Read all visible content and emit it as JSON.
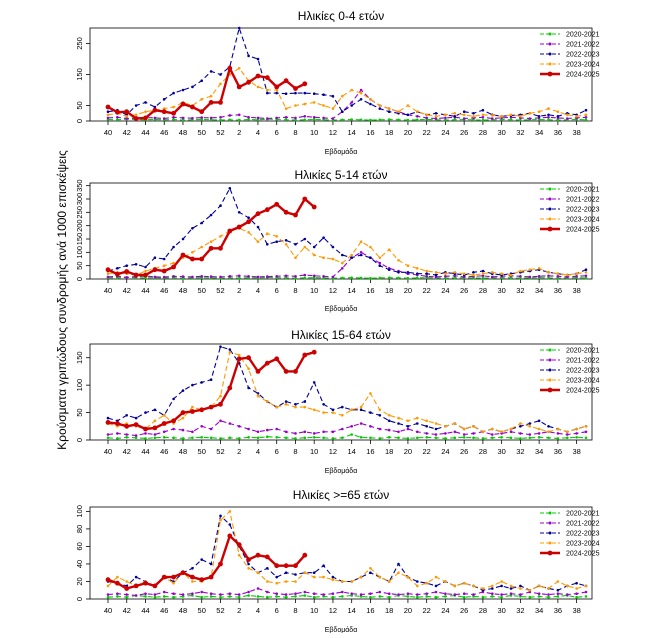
{
  "figure": {
    "ylabel": "Κρούσματα γριπώδους συνδρομής ανά 1000 επισκέψεις"
  },
  "legend_entries": [
    {
      "name": "2020-2021",
      "color": "#00cc00",
      "style": "dashed",
      "marker": "dot"
    },
    {
      "name": "2021-2022",
      "color": "#9900cc",
      "style": "dashed",
      "marker": "dot"
    },
    {
      "name": "2022-2023",
      "color": "#000099",
      "style": "dashed",
      "marker": "dot"
    },
    {
      "name": "2023-2024",
      "color": "#ff9900",
      "style": "dashed",
      "marker": "dot"
    },
    {
      "name": "2024-2025",
      "color": "#cc0000",
      "style": "solid",
      "marker": "dot"
    }
  ],
  "week_ticks": [
    "40",
    "42",
    "44",
    "46",
    "48",
    "50",
    "52",
    "2",
    "4",
    "6",
    "8",
    "10",
    "12",
    "14",
    "16",
    "18",
    "20",
    "22",
    "24",
    "26",
    "28",
    "30",
    "32",
    "34",
    "36",
    "38"
  ],
  "chart_data": [
    {
      "type": "line",
      "title": "Ηλικίες 0-4 ετών",
      "xlabel": "Εβδομάδα",
      "ylabel": "Κρούσματα γριπώδους συνδρομής ανά 1000 επισκέψεις",
      "ylim": [
        0,
        300
      ],
      "yticks": [
        0,
        50,
        150,
        250
      ],
      "series": [
        {
          "name": "2020-2021",
          "values": [
            5,
            4,
            6,
            5,
            4,
            5,
            4,
            5,
            3,
            4,
            5,
            4,
            3,
            4,
            3,
            5,
            4,
            6,
            5,
            4,
            3,
            4,
            5,
            4,
            3,
            4,
            5,
            4,
            3,
            4,
            5,
            4,
            3,
            4,
            5,
            4,
            3,
            4,
            5,
            4,
            3,
            4,
            5,
            4,
            3,
            4,
            5,
            4,
            3,
            4,
            5,
            4
          ]
        },
        {
          "name": "2021-2022",
          "values": [
            10,
            12,
            8,
            9,
            11,
            10,
            8,
            12,
            10,
            9,
            11,
            10,
            12,
            18,
            20,
            12,
            10,
            8,
            10,
            12,
            10,
            15,
            12,
            10,
            8,
            30,
            60,
            100,
            70,
            50,
            40,
            30,
            20,
            15,
            10,
            8,
            10,
            12,
            8,
            10,
            12,
            8,
            10,
            12,
            10,
            8,
            10,
            12,
            10,
            8,
            10,
            12
          ]
        },
        {
          "name": "2022-2023",
          "values": [
            30,
            35,
            20,
            50,
            60,
            45,
            70,
            90,
            100,
            110,
            130,
            160,
            150,
            175,
            300,
            210,
            200,
            90,
            90,
            88,
            90,
            90,
            88,
            85,
            80,
            30,
            50,
            70,
            55,
            40,
            30,
            25,
            20,
            30,
            20,
            25,
            20,
            15,
            30,
            25,
            35,
            20,
            15,
            18,
            20,
            25,
            15,
            20,
            15,
            25,
            20,
            35
          ]
        },
        {
          "name": "2023-2024",
          "values": [
            20,
            25,
            15,
            20,
            30,
            35,
            40,
            45,
            60,
            50,
            70,
            80,
            120,
            150,
            170,
            130,
            110,
            100,
            100,
            40,
            50,
            55,
            60,
            50,
            40,
            80,
            100,
            90,
            70,
            50,
            40,
            30,
            50,
            30,
            20,
            15,
            20,
            25,
            20,
            15,
            20,
            18,
            15,
            20,
            15,
            25,
            30,
            40,
            30,
            20,
            15,
            20
          ]
        },
        {
          "name": "2024-2025",
          "values": [
            45,
            28,
            30,
            8,
            10,
            35,
            30,
            25,
            55,
            45,
            30,
            60,
            60,
            170,
            110,
            125,
            145,
            140,
            110,
            130,
            105,
            120
          ]
        }
      ]
    },
    {
      "type": "line",
      "title": "Ηλικίες 5-14 ετών",
      "xlabel": "Εβδομάδα",
      "ylabel": "Κρούσματα γριπώδους συνδρομής ανά 1000 επισκέψεις",
      "ylim": [
        0,
        360
      ],
      "yticks": [
        0,
        50,
        100,
        150,
        200,
        250,
        300,
        350
      ],
      "series": [
        {
          "name": "2020-2021",
          "values": [
            5,
            4,
            6,
            5,
            4,
            5,
            4,
            5,
            3,
            4,
            5,
            4,
            3,
            4,
            3,
            5,
            4,
            6,
            5,
            4,
            3,
            4,
            5,
            4,
            3,
            4,
            5,
            4,
            3,
            4,
            5,
            4,
            3,
            4,
            5,
            4,
            3,
            4,
            5,
            4,
            3,
            4,
            5,
            4,
            3,
            4,
            5,
            4,
            3,
            4,
            5,
            4
          ]
        },
        {
          "name": "2021-2022",
          "values": [
            8,
            10,
            6,
            9,
            11,
            8,
            7,
            10,
            9,
            8,
            10,
            9,
            8,
            10,
            12,
            10,
            8,
            9,
            10,
            12,
            10,
            15,
            12,
            10,
            8,
            40,
            80,
            100,
            80,
            60,
            40,
            30,
            20,
            15,
            10,
            8,
            10,
            12,
            8,
            10,
            12,
            8,
            10,
            12,
            10,
            8,
            10,
            12,
            10,
            8,
            10,
            12
          ]
        },
        {
          "name": "2022-2023",
          "values": [
            30,
            40,
            50,
            55,
            45,
            80,
            75,
            120,
            150,
            190,
            210,
            240,
            275,
            340,
            250,
            230,
            195,
            130,
            140,
            145,
            130,
            150,
            120,
            155,
            120,
            90,
            80,
            90,
            80,
            50,
            35,
            25,
            25,
            20,
            20,
            15,
            25,
            20,
            15,
            25,
            30,
            20,
            15,
            20,
            25,
            30,
            35,
            25,
            20,
            15,
            20,
            35
          ]
        },
        {
          "name": "2023-2024",
          "values": [
            20,
            25,
            20,
            15,
            30,
            40,
            50,
            60,
            80,
            100,
            120,
            140,
            160,
            180,
            190,
            175,
            140,
            170,
            160,
            130,
            80,
            120,
            90,
            80,
            75,
            60,
            90,
            140,
            120,
            80,
            110,
            70,
            50,
            40,
            30,
            25,
            20,
            25,
            20,
            15,
            20,
            25,
            20,
            15,
            30,
            35,
            40,
            25,
            20,
            15,
            20,
            25
          ]
        },
        {
          "name": "2024-2025",
          "values": [
            35,
            18,
            28,
            15,
            15,
            35,
            30,
            45,
            90,
            75,
            75,
            115,
            115,
            180,
            195,
            215,
            245,
            260,
            280,
            250,
            240,
            300,
            270
          ]
        }
      ]
    },
    {
      "type": "line",
      "title": "Ηλικίες 15-64 ετών",
      "xlabel": "Εβδομάδα",
      "ylabel": "Κρούσματα γριπώδους συνδρομής ανά 1000 επισκέψεις",
      "ylim": [
        0,
        175
      ],
      "yticks": [
        0,
        50,
        100,
        150
      ],
      "series": [
        {
          "name": "2020-2021",
          "values": [
            4,
            3,
            5,
            4,
            3,
            4,
            5,
            4,
            3,
            4,
            5,
            4,
            3,
            4,
            3,
            5,
            4,
            6,
            5,
            4,
            3,
            4,
            5,
            4,
            3,
            4,
            10,
            5,
            4,
            3,
            5,
            4,
            3,
            4,
            5,
            4,
            3,
            4,
            5,
            4,
            3,
            4,
            5,
            4,
            3,
            4,
            5,
            4,
            3,
            4,
            5,
            4
          ]
        },
        {
          "name": "2021-2022",
          "values": [
            10,
            12,
            10,
            8,
            12,
            10,
            15,
            20,
            18,
            15,
            25,
            20,
            35,
            30,
            25,
            20,
            15,
            18,
            20,
            15,
            12,
            15,
            12,
            15,
            15,
            20,
            25,
            30,
            25,
            20,
            18,
            15,
            20,
            15,
            12,
            10,
            12,
            15,
            10,
            12,
            15,
            10,
            12,
            15,
            12,
            10,
            12,
            15,
            12,
            10,
            12,
            15
          ]
        },
        {
          "name": "2022-2023",
          "values": [
            40,
            35,
            45,
            40,
            50,
            55,
            45,
            75,
            90,
            100,
            105,
            110,
            170,
            165,
            140,
            95,
            85,
            70,
            60,
            70,
            65,
            70,
            105,
            65,
            55,
            60,
            55,
            55,
            50,
            45,
            35,
            30,
            25,
            30,
            25,
            20,
            25,
            30,
            20,
            25,
            15,
            20,
            15,
            20,
            25,
            30,
            35,
            25,
            20,
            15,
            20,
            25
          ]
        },
        {
          "name": "2023-2024",
          "values": [
            30,
            25,
            30,
            25,
            20,
            35,
            45,
            30,
            40,
            60,
            55,
            60,
            80,
            160,
            155,
            130,
            80,
            70,
            60,
            65,
            60,
            60,
            55,
            50,
            50,
            45,
            55,
            60,
            85,
            55,
            45,
            40,
            35,
            40,
            35,
            30,
            25,
            30,
            20,
            25,
            15,
            20,
            15,
            20,
            30,
            25,
            20,
            15,
            20,
            15,
            20,
            25
          ]
        },
        {
          "name": "2024-2025",
          "values": [
            32,
            30,
            25,
            28,
            20,
            22,
            30,
            35,
            50,
            52,
            55,
            60,
            65,
            95,
            148,
            150,
            125,
            140,
            148,
            125,
            125,
            155,
            160
          ]
        }
      ]
    },
    {
      "type": "line",
      "title": "Ηλικίες >=65 ετών",
      "xlabel": "Εβδομάδα",
      "ylabel": "Κρούσματα γριπώδους συνδρομής ανά 1000 επισκέψεις",
      "ylim": [
        0,
        105
      ],
      "yticks": [
        0,
        20,
        40,
        60,
        80,
        100
      ],
      "series": [
        {
          "name": "2020-2021",
          "values": [
            2,
            3,
            2,
            4,
            3,
            2,
            3,
            2,
            3,
            4,
            2,
            3,
            2,
            3,
            2,
            4,
            3,
            2,
            3,
            2,
            3,
            4,
            2,
            3,
            2,
            3,
            4,
            3,
            2,
            3,
            2,
            4,
            3,
            2,
            3,
            2,
            3,
            4,
            2,
            3,
            2,
            3,
            2,
            4,
            3,
            2,
            3,
            2,
            3,
            4,
            2,
            3
          ]
        },
        {
          "name": "2021-2022",
          "values": [
            5,
            6,
            5,
            4,
            6,
            5,
            8,
            6,
            5,
            6,
            8,
            6,
            5,
            6,
            5,
            8,
            12,
            8,
            6,
            5,
            6,
            8,
            6,
            5,
            6,
            8,
            6,
            5,
            6,
            8,
            6,
            5,
            6,
            5,
            6,
            8,
            6,
            5,
            6,
            5,
            8,
            6,
            5,
            6,
            5,
            8,
            6,
            5,
            6,
            5,
            6,
            8
          ]
        },
        {
          "name": "2022-2023",
          "values": [
            20,
            18,
            15,
            25,
            20,
            15,
            25,
            20,
            30,
            35,
            45,
            40,
            95,
            85,
            60,
            40,
            30,
            35,
            25,
            30,
            28,
            30,
            30,
            38,
            25,
            20,
            20,
            25,
            30,
            25,
            20,
            40,
            25,
            20,
            18,
            15,
            20,
            15,
            18,
            15,
            10,
            12,
            15,
            12,
            15,
            10,
            15,
            12,
            10,
            15,
            18,
            15
          ]
        },
        {
          "name": "2023-2024",
          "values": [
            15,
            25,
            20,
            15,
            20,
            15,
            25,
            18,
            30,
            20,
            20,
            25,
            90,
            100,
            50,
            35,
            30,
            20,
            18,
            20,
            20,
            30,
            25,
            25,
            22,
            20,
            20,
            25,
            35,
            25,
            20,
            30,
            25,
            15,
            18,
            25,
            20,
            15,
            18,
            15,
            12,
            15,
            20,
            15,
            12,
            10,
            15,
            12,
            20,
            15,
            12,
            15
          ]
        },
        {
          "name": "2024-2025",
          "values": [
            22,
            18,
            12,
            15,
            18,
            15,
            25,
            25,
            30,
            25,
            22,
            25,
            40,
            72,
            62,
            45,
            50,
            48,
            38,
            38,
            38,
            50
          ]
        }
      ]
    }
  ]
}
